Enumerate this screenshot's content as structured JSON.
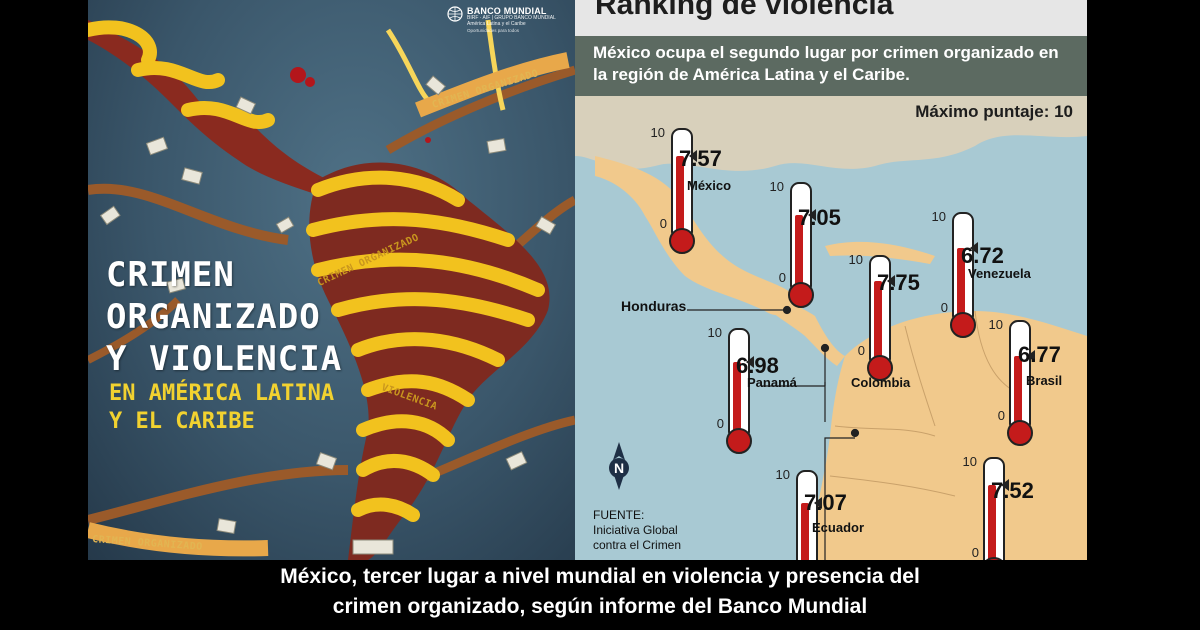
{
  "cover": {
    "bank_name": "BANCO MUNDIAL",
    "bank_sub": "BIRF · AIF | GRUPO BANCO MUNDIAL",
    "bank_region": "América Latina y el Caribe",
    "bank_tagline": "Oportunidades para todos",
    "title_lines": [
      "CRIMEN",
      "ORGANIZADO",
      "Y VIOLENCIA"
    ],
    "subtitle_lines": [
      "EN AMÉRICA LATINA",
      "Y EL CARIBE"
    ],
    "band_labels": [
      "CRIMEN ORGANIZADO",
      "CRIMEN ORGANIZADO",
      "CRIMEN ORGANIZADO",
      "VIOLENCIA"
    ]
  },
  "infographic": {
    "title": "Ranking de violencia",
    "subtitle": "México ocupa el segundo lugar por crimen organizado en la región de América Latina y el Caribe.",
    "max_label": "Máximo puntaje: 10",
    "honduras_label": "Honduras",
    "compass": "N",
    "source_lines": [
      "FUENTE:",
      "Iniciativa Global",
      "contra el Crimen"
    ],
    "scale_top": "10",
    "scale_bottom": "0",
    "scale_max": 10,
    "countries": [
      {
        "name": "México",
        "score": "7.57",
        "value": 7.57
      },
      {
        "name": "",
        "score": "7.05",
        "value": 7.05
      },
      {
        "name": "Colombia",
        "score": "7.75",
        "value": 7.75
      },
      {
        "name": "Venezuela",
        "score": "6.72",
        "value": 6.72
      },
      {
        "name": "Panamá",
        "score": "6.98",
        "value": 6.98
      },
      {
        "name": "Brasil",
        "score": "6.77",
        "value": 6.77
      },
      {
        "name": "Ecuador",
        "score": "7.07",
        "value": 7.07
      },
      {
        "name": "",
        "score": "7.52",
        "value": 7.52
      }
    ]
  },
  "caption": {
    "line1": "México, tercer lugar a nivel mundial en violencia y presencia del",
    "line2": "crimen organizado, según informe del Banco Mundial"
  }
}
